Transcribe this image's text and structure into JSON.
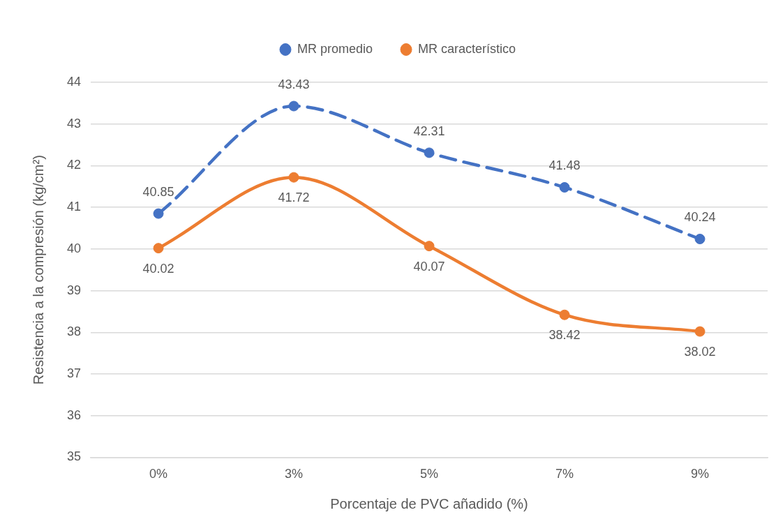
{
  "chart_data": {
    "type": "line",
    "xlabel": "Porcentaje de PVC añadido (%)",
    "ylabel": "Resistencia a la compresión (kg/cm²)",
    "categories": [
      "0%",
      "3%",
      "5%",
      "7%",
      "9%"
    ],
    "series": [
      {
        "name": "MR promedio",
        "color": "#4472c4",
        "line_style": "dashed",
        "values": [
          40.85,
          43.43,
          42.31,
          41.48,
          40.24
        ]
      },
      {
        "name": "MR característico",
        "color": "#ed7d31",
        "line_style": "solid",
        "values": [
          40.02,
          41.72,
          40.07,
          38.42,
          38.02
        ]
      }
    ],
    "ylim": [
      35,
      44
    ],
    "yticks": [
      35,
      36,
      37,
      38,
      39,
      40,
      41,
      42,
      43,
      44
    ],
    "grid": "y",
    "legend": "top",
    "marker": "circle",
    "data_labels": true
  }
}
